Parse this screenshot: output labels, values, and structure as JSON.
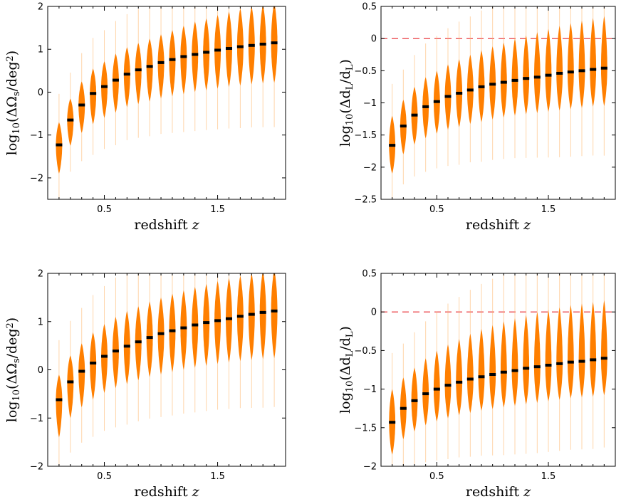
{
  "chart_data": [
    {
      "type": "violin",
      "panel": "top-left",
      "title": "",
      "xlabel": "redshift z",
      "ylabel": "log10(ΔΩ_s/deg^2)",
      "xlim": [
        0.0,
        2.1
      ],
      "ylim": [
        -2.5,
        2.0
      ],
      "xticks": [
        0.5,
        1.5
      ],
      "xtick_labels": [
        "0.5",
        "1.5"
      ],
      "yticks": [
        -2,
        -1,
        0,
        1,
        2
      ],
      "ytick_labels": [
        "−2",
        "−1",
        "0",
        "1",
        "2"
      ],
      "reference_line": null,
      "x": [
        0.1,
        0.2,
        0.3,
        0.4,
        0.5,
        0.6,
        0.7,
        0.8,
        0.9,
        1.0,
        1.1,
        1.2,
        1.3,
        1.4,
        1.5,
        1.6,
        1.7,
        1.8,
        1.9,
        2.0
      ],
      "medians": [
        -1.23,
        -0.65,
        -0.3,
        -0.03,
        0.13,
        0.28,
        0.42,
        0.52,
        0.6,
        0.69,
        0.76,
        0.83,
        0.88,
        0.93,
        0.98,
        1.02,
        1.06,
        1.09,
        1.12,
        1.15
      ],
      "box_low": [
        -1.9,
        -1.25,
        -0.95,
        -0.75,
        -0.6,
        -0.48,
        -0.35,
        -0.28,
        -0.22,
        -0.15,
        -0.1,
        -0.05,
        0.0,
        0.04,
        0.08,
        0.12,
        0.15,
        0.18,
        0.2,
        0.22
      ],
      "box_high": [
        -0.7,
        -0.15,
        0.25,
        0.55,
        0.72,
        0.9,
        1.05,
        1.15,
        1.25,
        1.35,
        1.45,
        1.55,
        1.65,
        1.72,
        1.8,
        1.88,
        1.95,
        2.0,
        2.05,
        2.1
      ]
    },
    {
      "type": "violin",
      "panel": "top-right",
      "title": "",
      "xlabel": "redshift z",
      "ylabel": "log10(Δd_L/d_L)",
      "xlim": [
        0.0,
        2.1
      ],
      "ylim": [
        -2.5,
        0.5
      ],
      "xticks": [
        0.5,
        1.5
      ],
      "xtick_labels": [
        "0.5",
        "1.5"
      ],
      "yticks": [
        -2.5,
        -2,
        -1.5,
        -1,
        -0.5,
        0,
        0.5
      ],
      "ytick_labels": [
        "−2.5",
        "−2",
        "−1.5",
        "−1",
        "−0.5",
        "0",
        "0.5"
      ],
      "reference_line": 0,
      "x": [
        0.1,
        0.2,
        0.3,
        0.4,
        0.5,
        0.6,
        0.7,
        0.8,
        0.9,
        1.0,
        1.1,
        1.2,
        1.3,
        1.4,
        1.5,
        1.6,
        1.7,
        1.8,
        1.9,
        2.0
      ],
      "medians": [
        -1.66,
        -1.36,
        -1.19,
        -1.06,
        -0.98,
        -0.9,
        -0.85,
        -0.8,
        -0.75,
        -0.71,
        -0.68,
        -0.65,
        -0.62,
        -0.6,
        -0.57,
        -0.54,
        -0.52,
        -0.5,
        -0.48,
        -0.46
      ],
      "box_low": [
        -2.1,
        -1.8,
        -1.65,
        -1.55,
        -1.48,
        -1.42,
        -1.38,
        -1.33,
        -1.3,
        -1.26,
        -1.23,
        -1.2,
        -1.18,
        -1.16,
        -1.14,
        -1.12,
        -1.1,
        -1.08,
        -1.06,
        -1.05
      ],
      "box_high": [
        -1.2,
        -0.95,
        -0.75,
        -0.6,
        -0.5,
        -0.4,
        -0.32,
        -0.25,
        -0.18,
        -0.12,
        -0.06,
        0.0,
        0.05,
        0.1,
        0.15,
        0.2,
        0.24,
        0.28,
        0.32,
        0.35
      ]
    },
    {
      "type": "violin",
      "panel": "bottom-left",
      "title": "",
      "xlabel": "redshift z",
      "ylabel": "log10(ΔΩ_s/deg^2)",
      "xlim": [
        0.0,
        2.1
      ],
      "ylim": [
        -2.0,
        2.0
      ],
      "xticks": [
        0.5,
        1.5
      ],
      "xtick_labels": [
        "0.5",
        "1.5"
      ],
      "yticks": [
        -2,
        -1,
        0,
        1,
        2
      ],
      "ytick_labels": [
        "−2",
        "−1",
        "0",
        "1",
        "2"
      ],
      "reference_line": null,
      "x": [
        0.1,
        0.2,
        0.3,
        0.4,
        0.5,
        0.6,
        0.7,
        0.8,
        0.9,
        1.0,
        1.1,
        1.2,
        1.3,
        1.4,
        1.5,
        1.6,
        1.7,
        1.8,
        1.9,
        2.0
      ],
      "medians": [
        -0.62,
        -0.25,
        -0.03,
        0.14,
        0.28,
        0.39,
        0.49,
        0.58,
        0.67,
        0.75,
        0.81,
        0.87,
        0.93,
        0.98,
        1.02,
        1.06,
        1.11,
        1.15,
        1.19,
        1.22
      ],
      "box_low": [
        -1.4,
        -1.0,
        -0.78,
        -0.62,
        -0.48,
        -0.38,
        -0.3,
        -0.22,
        -0.15,
        -0.1,
        -0.05,
        0.0,
        0.04,
        0.08,
        0.12,
        0.15,
        0.18,
        0.2,
        0.22,
        0.24
      ],
      "box_high": [
        -0.1,
        0.3,
        0.55,
        0.78,
        0.95,
        1.1,
        1.22,
        1.32,
        1.42,
        1.5,
        1.58,
        1.65,
        1.72,
        1.78,
        1.84,
        1.9,
        1.95,
        2.0,
        2.05,
        2.08
      ]
    },
    {
      "type": "violin",
      "panel": "bottom-right",
      "title": "",
      "xlabel": "redshift z",
      "ylabel": "log10(Δd_L/d_L)",
      "xlim": [
        0.0,
        2.1
      ],
      "ylim": [
        -2.0,
        0.5
      ],
      "xticks": [
        0.5,
        1.5
      ],
      "xtick_labels": [
        "0.5",
        "1.5"
      ],
      "yticks": [
        -2,
        -1.5,
        -1,
        -0.5,
        0,
        0.5
      ],
      "ytick_labels": [
        "−2",
        "−1.5",
        "−1",
        "−0.5",
        "0",
        "0.5"
      ],
      "reference_line": 0,
      "x": [
        0.1,
        0.2,
        0.3,
        0.4,
        0.5,
        0.6,
        0.7,
        0.8,
        0.9,
        1.0,
        1.1,
        1.2,
        1.3,
        1.4,
        1.5,
        1.6,
        1.7,
        1.8,
        1.9,
        2.0
      ],
      "medians": [
        -1.43,
        -1.25,
        -1.15,
        -1.06,
        -1.0,
        -0.95,
        -0.91,
        -0.87,
        -0.84,
        -0.81,
        -0.78,
        -0.76,
        -0.73,
        -0.71,
        -0.69,
        -0.67,
        -0.65,
        -0.64,
        -0.62,
        -0.6
      ],
      "box_low": [
        -1.85,
        -1.65,
        -1.55,
        -1.47,
        -1.42,
        -1.38,
        -1.34,
        -1.31,
        -1.28,
        -1.26,
        -1.24,
        -1.22,
        -1.2,
        -1.18,
        -1.16,
        -1.14,
        -1.12,
        -1.11,
        -1.1,
        -1.08
      ],
      "box_high": [
        -1.0,
        -0.85,
        -0.72,
        -0.6,
        -0.5,
        -0.42,
        -0.35,
        -0.28,
        -0.22,
        -0.17,
        -0.12,
        -0.08,
        -0.04,
        0.0,
        0.03,
        0.06,
        0.09,
        0.11,
        0.13,
        0.15
      ]
    }
  ]
}
